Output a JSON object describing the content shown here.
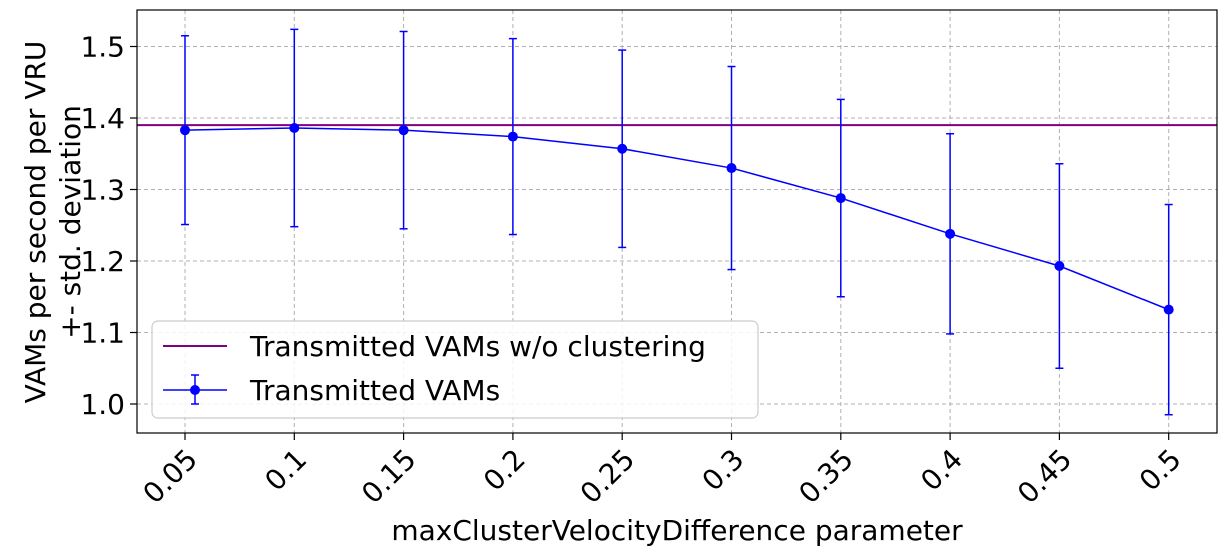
{
  "chart_data": {
    "type": "line",
    "title": "",
    "xlabel": "maxClusterVelocityDifference parameter",
    "ylabel_lines": [
      "VAMs per second per VRU",
      "+- std. deviation"
    ],
    "x": [
      "0.05",
      "0.1",
      "0.15",
      "0.2",
      "0.25",
      "0.3",
      "0.35",
      "0.4",
      "0.45",
      "0.5"
    ],
    "ylim": [
      0.96,
      1.55
    ],
    "yticks": [
      "1.0",
      "1.1",
      "1.2",
      "1.3",
      "1.4",
      "1.5"
    ],
    "grid": true,
    "legend_position": "lower-left",
    "series": [
      {
        "name": "Transmitted VAMs",
        "color": "#0000ff",
        "marker": "circle",
        "values": [
          1.383,
          1.386,
          1.383,
          1.374,
          1.357,
          1.33,
          1.288,
          1.238,
          1.193,
          1.132
        ],
        "error": [
          0.132,
          0.138,
          0.138,
          0.137,
          0.138,
          0.142,
          0.138,
          0.14,
          0.143,
          0.147
        ]
      }
    ],
    "reference_lines": [
      {
        "name": "Transmitted VAMs w/o clustering",
        "color": "#800080",
        "value": 1.39
      }
    ]
  }
}
